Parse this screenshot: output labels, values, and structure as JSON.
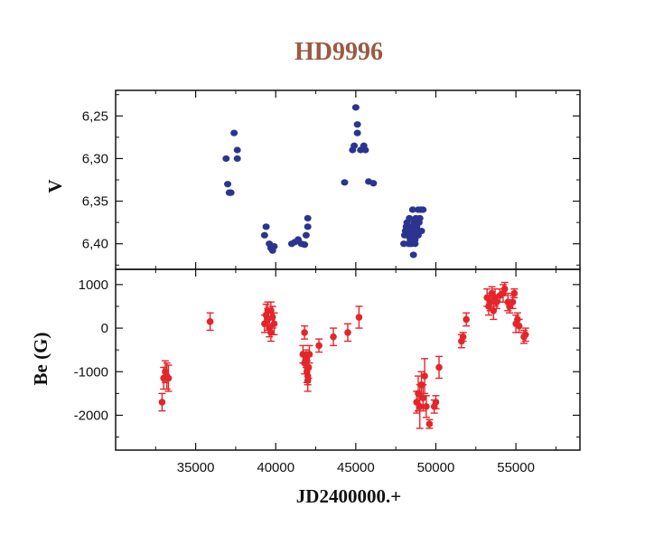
{
  "title": "HD9996",
  "colors": {
    "top_series": "#2b3590",
    "bottom_series": "#e3262b",
    "title": "#9a5a43"
  },
  "chart_data": [
    {
      "type": "scatter",
      "panel": "top",
      "ylabel": "V",
      "xlabel": "",
      "xlim": [
        30000,
        59000
      ],
      "ylim": [
        6.22,
        6.43
      ],
      "y_inverted": true,
      "yticks": [
        "6,25",
        "6,30",
        "6,35",
        "6,40"
      ],
      "ytick_values": [
        6.25,
        6.3,
        6.35,
        6.4
      ],
      "grid": false,
      "points": [
        [
          36900,
          6.3
        ],
        [
          37000,
          6.33
        ],
        [
          37200,
          6.34
        ],
        [
          37100,
          6.34
        ],
        [
          37400,
          6.27
        ],
        [
          37600,
          6.3
        ],
        [
          37600,
          6.29
        ],
        [
          39300,
          6.39
        ],
        [
          39400,
          6.38
        ],
        [
          39600,
          6.4
        ],
        [
          39700,
          6.405
        ],
        [
          39800,
          6.408
        ],
        [
          39900,
          6.403
        ],
        [
          41000,
          6.4
        ],
        [
          41200,
          6.398
        ],
        [
          41400,
          6.395
        ],
        [
          41600,
          6.4
        ],
        [
          41800,
          6.401
        ],
        [
          41900,
          6.39
        ],
        [
          42000,
          6.37
        ],
        [
          42000,
          6.38
        ],
        [
          44300,
          6.328
        ],
        [
          44800,
          6.29
        ],
        [
          44900,
          6.285
        ],
        [
          45000,
          6.24
        ],
        [
          45100,
          6.26
        ],
        [
          45100,
          6.27
        ],
        [
          45300,
          6.29
        ],
        [
          45500,
          6.285
        ],
        [
          45600,
          6.29
        ],
        [
          45800,
          6.327
        ],
        [
          46100,
          6.329
        ],
        [
          48000,
          6.4
        ],
        [
          48050,
          6.39
        ],
        [
          48100,
          6.385
        ],
        [
          48150,
          6.38
        ],
        [
          48200,
          6.375
        ],
        [
          48250,
          6.39
        ],
        [
          48300,
          6.4
        ],
        [
          48350,
          6.37
        ],
        [
          48400,
          6.395
        ],
        [
          48450,
          6.385
        ],
        [
          48500,
          6.38
        ],
        [
          48550,
          6.36
        ],
        [
          48600,
          6.39
        ],
        [
          48650,
          6.375
        ],
        [
          48700,
          6.395
        ],
        [
          48750,
          6.37
        ],
        [
          48800,
          6.38
        ],
        [
          48850,
          6.385
        ],
        [
          48900,
          6.36
        ],
        [
          48950,
          6.375
        ],
        [
          49000,
          6.37
        ],
        [
          49050,
          6.36
        ],
        [
          49100,
          6.385
        ],
        [
          49200,
          6.36
        ],
        [
          48600,
          6.413
        ],
        [
          48400,
          6.4
        ],
        [
          48700,
          6.4
        ],
        [
          48900,
          6.39
        ],
        [
          48200,
          6.39
        ],
        [
          48500,
          6.4
        ]
      ]
    },
    {
      "type": "scatter",
      "panel": "bottom",
      "ylabel": "Be (G)",
      "xlabel": "JD2400000.+",
      "xlim": [
        30000,
        59000
      ],
      "ylim": [
        -2800,
        1350
      ],
      "xticks": [
        "35000",
        "40000",
        "45000",
        "50000",
        "55000"
      ],
      "xtick_values": [
        35000,
        40000,
        45000,
        50000,
        55000
      ],
      "yticks": [
        "1000",
        "0",
        "-1000",
        "-2000"
      ],
      "ytick_values": [
        1000,
        0,
        -1000,
        -2000
      ],
      "grid": false,
      "points": [
        [
          32900,
          -1700,
          200
        ],
        [
          33000,
          -1150,
          250
        ],
        [
          33100,
          -1000,
          250
        ],
        [
          33200,
          -1100,
          300
        ],
        [
          33300,
          -1150,
          300
        ],
        [
          35900,
          150,
          200
        ],
        [
          39300,
          100,
          200
        ],
        [
          39400,
          300,
          250
        ],
        [
          39500,
          200,
          250
        ],
        [
          39500,
          400,
          200
        ],
        [
          39600,
          0,
          200
        ],
        [
          39700,
          -100,
          200
        ],
        [
          39800,
          250,
          250
        ],
        [
          39900,
          100,
          250
        ],
        [
          39700,
          400,
          200
        ],
        [
          41700,
          -600,
          200
        ],
        [
          41800,
          -800,
          250
        ],
        [
          41800,
          -100,
          150
        ],
        [
          41900,
          -700,
          200
        ],
        [
          41950,
          -1000,
          250
        ],
        [
          42000,
          -1200,
          250
        ],
        [
          42050,
          -900,
          250
        ],
        [
          42100,
          -600,
          200
        ],
        [
          42000,
          -1100,
          200
        ],
        [
          42700,
          -400,
          150
        ],
        [
          43600,
          -200,
          200
        ],
        [
          44500,
          -100,
          200
        ],
        [
          45200,
          250,
          250
        ],
        [
          48800,
          -1700,
          250
        ],
        [
          48900,
          -1500,
          400
        ],
        [
          49000,
          -1800,
          500
        ],
        [
          49100,
          -1300,
          300
        ],
        [
          49200,
          -1600,
          300
        ],
        [
          49300,
          -1100,
          400
        ],
        [
          49400,
          -1800,
          250
        ],
        [
          49600,
          -2200,
          100
        ],
        [
          49900,
          -1800,
          150
        ],
        [
          50000,
          -1700,
          150
        ],
        [
          50200,
          -900,
          250
        ],
        [
          51600,
          -300,
          150
        ],
        [
          51700,
          -200,
          100
        ],
        [
          51900,
          200,
          150
        ],
        [
          53200,
          700,
          200
        ],
        [
          53300,
          500,
          200
        ],
        [
          53400,
          600,
          200
        ],
        [
          53500,
          800,
          150
        ],
        [
          53600,
          400,
          200
        ],
        [
          53700,
          700,
          200
        ],
        [
          53800,
          600,
          150
        ],
        [
          54000,
          750,
          150
        ],
        [
          54200,
          800,
          200
        ],
        [
          54300,
          900,
          150
        ],
        [
          54500,
          600,
          200
        ],
        [
          54600,
          500,
          150
        ],
        [
          54800,
          600,
          150
        ],
        [
          54900,
          800,
          100
        ],
        [
          55000,
          100,
          200
        ],
        [
          55100,
          200,
          150
        ],
        [
          55200,
          50,
          150
        ],
        [
          55500,
          -200,
          150
        ],
        [
          55600,
          -150,
          150
        ]
      ]
    }
  ]
}
